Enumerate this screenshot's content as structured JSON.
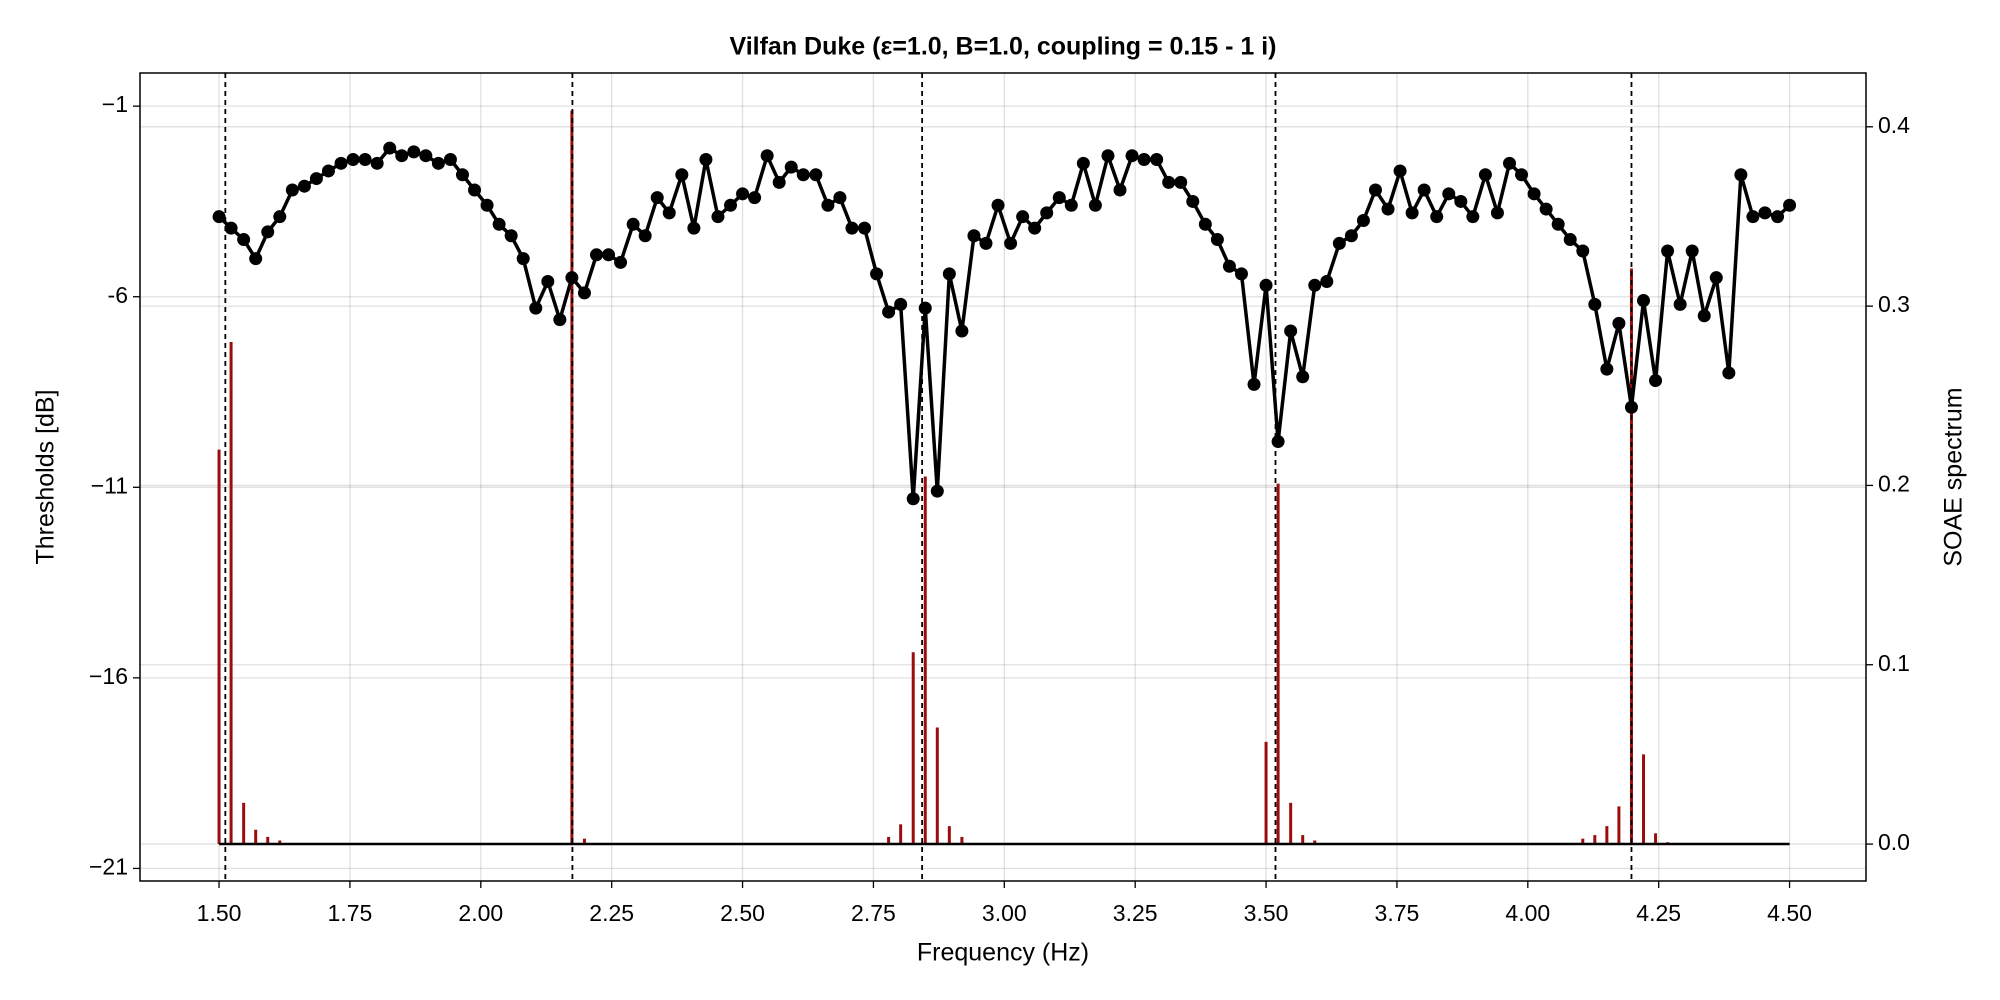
{
  "chart_data": {
    "type": "line",
    "title": "Vilfan Duke (ε=1.0, B=1.0, coupling = 0.15 - 1 i)",
    "x_label": "Frequency (Hz)",
    "y_label": "Thresholds [dB]",
    "y2_label": "SOAE spectrum",
    "xlim": [
      1.349,
      4.646
    ],
    "ylim": [
      -21.33,
      -0.13
    ],
    "y2lim": [
      -0.0206,
      0.43
    ],
    "xticks": [
      {
        "value": 1.5,
        "label": "1.50"
      },
      {
        "value": 1.75,
        "label": "1.75"
      },
      {
        "value": 2.0,
        "label": "2.00"
      },
      {
        "value": 2.25,
        "label": "2.25"
      },
      {
        "value": 2.5,
        "label": "2.50"
      },
      {
        "value": 2.75,
        "label": "2.75"
      },
      {
        "value": 3.0,
        "label": "3.00"
      },
      {
        "value": 3.25,
        "label": "3.25"
      },
      {
        "value": 3.5,
        "label": "3.50"
      },
      {
        "value": 3.75,
        "label": "3.75"
      },
      {
        "value": 4.0,
        "label": "4.00"
      },
      {
        "value": 4.25,
        "label": "4.25"
      },
      {
        "value": 4.5,
        "label": "4.50"
      }
    ],
    "yticks": [
      {
        "value": -21,
        "label": "−21"
      },
      {
        "value": -16,
        "label": "−16"
      },
      {
        "value": -11,
        "label": "−11"
      },
      {
        "value": -6,
        "label": "-6"
      },
      {
        "value": -1,
        "label": "−1"
      }
    ],
    "y2ticks": [
      {
        "value": 0,
        "label": "0.0"
      },
      0.1,
      0.2,
      0.3,
      0.4
    ],
    "grid": true,
    "vlines": [
      1.512,
      2.175,
      2.843,
      3.518,
      4.198
    ],
    "vline_color": "#000000",
    "series": [
      {
        "type": "line",
        "axis": "y",
        "color": "#000000",
        "x": [
          1.5,
          1.523,
          1.547,
          1.57,
          1.593,
          1.616,
          1.64,
          1.663,
          1.686,
          1.709,
          1.733,
          1.756,
          1.779,
          1.802,
          1.826,
          1.849,
          1.872,
          1.895,
          1.919,
          1.942,
          1.965,
          1.988,
          2.012,
          2.035,
          2.058,
          2.081,
          2.105,
          2.128,
          2.151,
          2.174,
          2.198,
          2.221,
          2.244,
          2.267,
          2.291,
          2.314,
          2.337,
          2.36,
          2.384,
          2.407,
          2.43,
          2.453,
          2.477,
          2.5,
          2.523,
          2.547,
          2.57,
          2.593,
          2.616,
          2.64,
          2.663,
          2.686,
          2.709,
          2.733,
          2.756,
          2.779,
          2.802,
          2.826,
          2.849,
          2.872,
          2.895,
          2.919,
          2.942,
          2.965,
          2.988,
          3.012,
          3.035,
          3.058,
          3.081,
          3.105,
          3.128,
          3.151,
          3.174,
          3.198,
          3.221,
          3.244,
          3.267,
          3.291,
          3.314,
          3.337,
          3.36,
          3.384,
          3.407,
          3.43,
          3.453,
          3.477,
          3.5,
          3.523,
          3.547,
          3.57,
          3.593,
          3.616,
          3.64,
          3.663,
          3.686,
          3.709,
          3.733,
          3.756,
          3.779,
          3.802,
          3.826,
          3.849,
          3.872,
          3.895,
          3.919,
          3.942,
          3.965,
          3.988,
          4.012,
          4.035,
          4.058,
          4.081,
          4.105,
          4.128,
          4.151,
          4.174,
          4.198,
          4.221,
          4.244,
          4.267,
          4.291,
          4.314,
          4.337,
          4.36,
          4.384,
          4.407,
          4.43,
          4.453,
          4.477,
          4.5
        ],
        "values": [
          -3.9,
          -4.2,
          -4.5,
          -5.0,
          -4.3,
          -3.9,
          -3.2,
          -3.1,
          -2.9,
          -2.7,
          -2.5,
          -2.4,
          -2.4,
          -2.5,
          -2.1,
          -2.3,
          -2.2,
          -2.3,
          -2.5,
          -2.4,
          -2.8,
          -3.2,
          -3.6,
          -4.1,
          -4.4,
          -5.0,
          -6.3,
          -5.6,
          -6.6,
          -5.5,
          -5.9,
          -4.9,
          -4.9,
          -5.1,
          -4.1,
          -4.4,
          -3.4,
          -3.8,
          -2.8,
          -4.2,
          -2.4,
          -3.9,
          -3.6,
          -3.3,
          -3.4,
          -2.3,
          -3.0,
          -2.6,
          -2.8,
          -2.8,
          -3.6,
          -3.4,
          -4.2,
          -4.2,
          -5.4,
          -6.4,
          -6.2,
          -11.3,
          -6.3,
          -11.1,
          -5.4,
          -6.9,
          -4.4,
          -4.6,
          -3.6,
          -4.6,
          -3.9,
          -4.2,
          -3.8,
          -3.4,
          -3.6,
          -2.5,
          -3.6,
          -2.3,
          -3.2,
          -2.3,
          -2.4,
          -2.4,
          -3.0,
          -3.0,
          -3.5,
          -4.1,
          -4.5,
          -5.2,
          -5.4,
          -8.3,
          -5.7,
          -9.8,
          -6.9,
          -8.1,
          -5.7,
          -5.6,
          -4.6,
          -4.4,
          -4.0,
          -3.2,
          -3.7,
          -2.7,
          -3.8,
          -3.2,
          -3.9,
          -3.3,
          -3.5,
          -3.9,
          -2.8,
          -3.8,
          -2.5,
          -2.8,
          -3.3,
          -3.7,
          -4.1,
          -4.5,
          -4.8,
          -6.2,
          -7.9,
          -6.7,
          -8.9,
          -6.1,
          -8.2,
          -4.8,
          -6.2,
          -4.8,
          -6.5,
          -5.5,
          -8.0,
          -2.8,
          -3.9,
          -3.8,
          -3.9,
          -3.6
        ]
      },
      {
        "type": "stem",
        "axis": "y2",
        "color": "#9b0d0d",
        "x": [
          1.5,
          1.523,
          1.547,
          1.57,
          1.593,
          1.616,
          2.174,
          2.198,
          2.779,
          2.802,
          2.826,
          2.849,
          2.872,
          2.895,
          2.919,
          3.5,
          3.523,
          3.547,
          3.57,
          3.593,
          4.105,
          4.128,
          4.151,
          4.174,
          4.198,
          4.221,
          4.244,
          4.267
        ],
        "values": [
          0.22,
          0.28,
          0.023,
          0.008,
          0.004,
          0.002,
          0.409,
          0.003,
          0.004,
          0.011,
          0.107,
          0.205,
          0.065,
          0.01,
          0.004,
          0.057,
          0.201,
          0.023,
          0.005,
          0.002,
          0.003,
          0.005,
          0.01,
          0.021,
          0.321,
          0.05,
          0.006,
          0.001
        ]
      }
    ]
  }
}
